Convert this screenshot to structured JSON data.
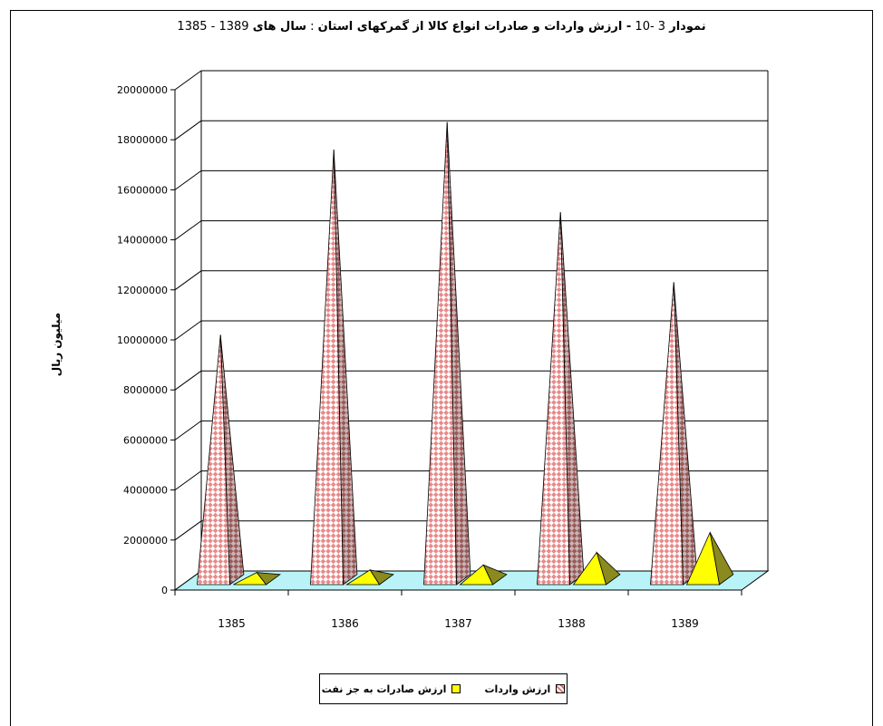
{
  "title": {
    "prefix": "نمودار",
    "number": "3 -10",
    "main": " - ارزش واردات و صادرات انواع کالا از گمرکهای استان",
    "sep": " : ",
    "years_label": "سال های",
    "years": " 1389 - 1385"
  },
  "colors": {
    "imports": "#e88a8a",
    "imports_dark": "#9a5a5a",
    "exports": "#ffff00",
    "exports_dark": "#8a8a1e",
    "floor": "#b9f3f7"
  },
  "chart_data": {
    "type": "bar",
    "style": "3d-pyramid",
    "categories": [
      "1385",
      "1386",
      "1387",
      "1388",
      "1389"
    ],
    "series": [
      {
        "name": "ارزش واردات",
        "values": [
          10000000,
          17400000,
          18500000,
          14900000,
          12100000
        ]
      },
      {
        "name": "ارزش صادرات به جز نفت",
        "values": [
          500000,
          600000,
          800000,
          1300000,
          2100000
        ]
      }
    ],
    "title": "نمودار 3 -10 - ارزش واردات و صادرات انواع کالا از گمرکهای استان : سال های 1389 - 1385",
    "xlabel": "",
    "ylabel": "میلیون ریال",
    "ylim": [
      0,
      20000000
    ],
    "yticks": [
      "0",
      "2000000",
      "4000000",
      "6000000",
      "8000000",
      "10000000",
      "12000000",
      "14000000",
      "16000000",
      "18000000",
      "20000000"
    ],
    "grid": true,
    "legend_position": "bottom"
  }
}
